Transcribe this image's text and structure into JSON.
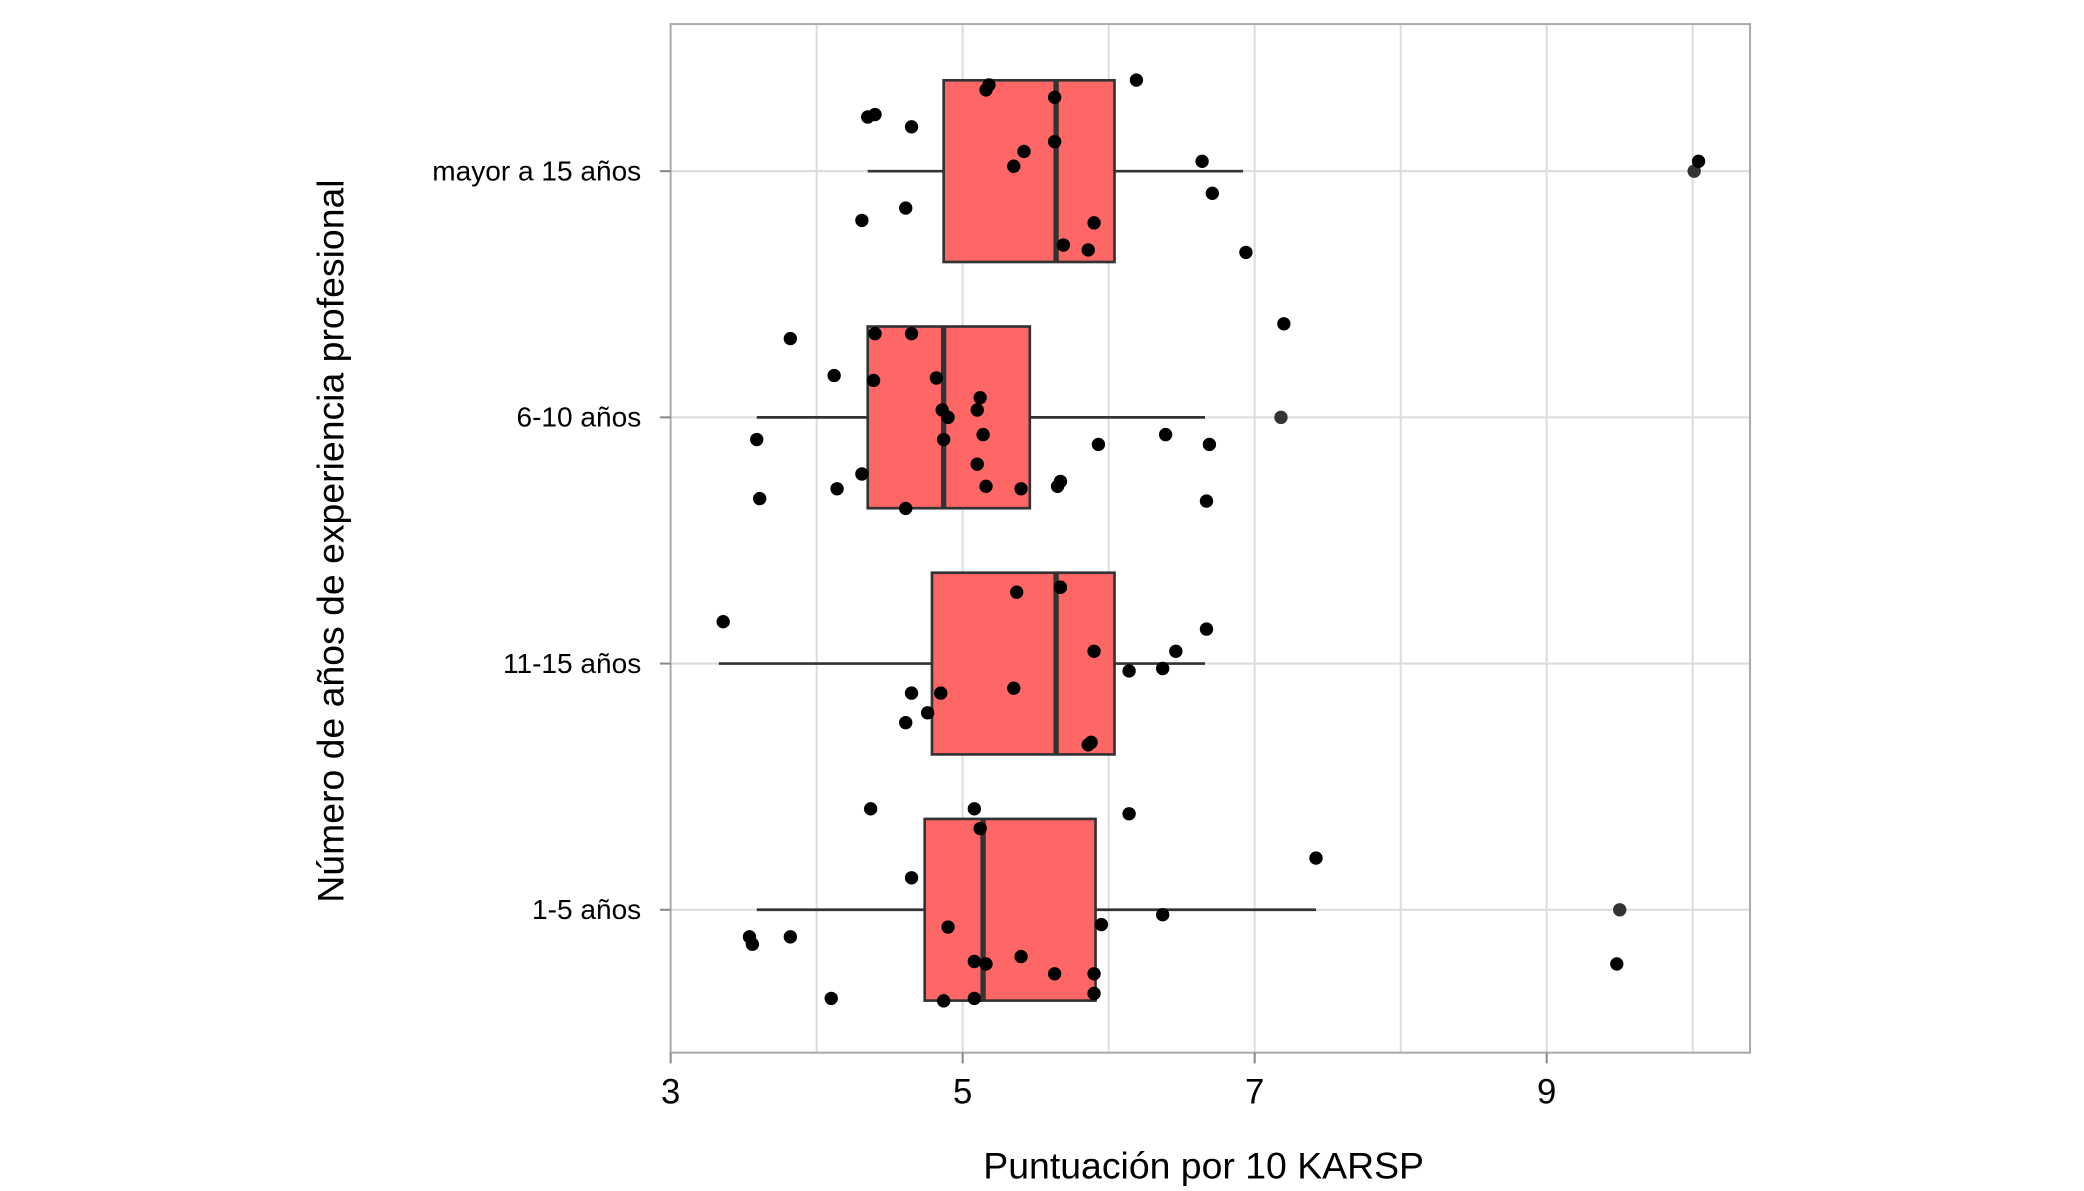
{
  "chart_data": {
    "type": "boxplot",
    "orientation": "horizontal",
    "title": "",
    "xlabel": "Puntuación por 10 KARSP",
    "ylabel": "Número de años de experiencia profesional",
    "xlim": [
      3,
      10.39
    ],
    "xticks": [
      3,
      5,
      7,
      9
    ],
    "xtick_labels": [
      "3",
      "5",
      "7",
      "9"
    ],
    "grid": true,
    "categories": [
      "1-5 años",
      "11-15 años",
      "6-10 años",
      "mayor a 15 años"
    ],
    "colors": {
      "box_fill": "#FF6666",
      "box_stroke": "#333333",
      "point": "#000000",
      "grid": "#DCDCDC",
      "frame": "#AAAAAA"
    },
    "boxes": [
      {
        "category": "1-5 años",
        "whisker_low": 3.59,
        "q1": 4.74,
        "median": 5.14,
        "q3": 5.91,
        "whisker_high": 7.42,
        "outliers": [
          9.5
        ]
      },
      {
        "category": "11-15 años",
        "whisker_low": 3.33,
        "q1": 4.79,
        "median": 5.64,
        "q3": 6.04,
        "whisker_high": 6.66,
        "outliers": []
      },
      {
        "category": "6-10 años",
        "whisker_low": 3.59,
        "q1": 4.35,
        "median": 4.87,
        "q3": 5.46,
        "whisker_high": 6.66,
        "outliers": [
          7.18
        ]
      },
      {
        "category": "mayor a 15 años",
        "whisker_low": 4.35,
        "q1": 4.87,
        "median": 5.64,
        "q3": 6.04,
        "whisker_high": 6.92,
        "outliers": [
          10.01
        ]
      }
    ],
    "jitter_points": [
      [
        6.19,
        4.37
      ],
      [
        5.18,
        4.35
      ],
      [
        5.16,
        4.33
      ],
      [
        5.63,
        4.3
      ],
      [
        4.4,
        4.23
      ],
      [
        4.35,
        4.22
      ],
      [
        4.65,
        4.18
      ],
      [
        5.63,
        4.12
      ],
      [
        5.42,
        4.08
      ],
      [
        5.35,
        4.02
      ],
      [
        6.64,
        4.04
      ],
      [
        10.04,
        4.04
      ],
      [
        6.71,
        3.91
      ],
      [
        4.61,
        3.85
      ],
      [
        4.31,
        3.8
      ],
      [
        5.9,
        3.79
      ],
      [
        5.69,
        3.7
      ],
      [
        5.86,
        3.68
      ],
      [
        6.94,
        3.67
      ],
      [
        7.2,
        3.38
      ],
      [
        3.82,
        3.32
      ],
      [
        4.4,
        3.34
      ],
      [
        4.65,
        3.34
      ],
      [
        4.12,
        3.17
      ],
      [
        4.39,
        3.15
      ],
      [
        4.82,
        3.16
      ],
      [
        5.12,
        3.08
      ],
      [
        5.1,
        3.03
      ],
      [
        4.86,
        3.03
      ],
      [
        4.9,
        3.0
      ],
      [
        3.59,
        2.91
      ],
      [
        4.87,
        2.91
      ],
      [
        5.14,
        2.93
      ],
      [
        6.39,
        2.93
      ],
      [
        6.69,
        2.89
      ],
      [
        5.93,
        2.89
      ],
      [
        4.31,
        2.77
      ],
      [
        5.1,
        2.81
      ],
      [
        5.67,
        2.74
      ],
      [
        5.65,
        2.72
      ],
      [
        5.16,
        2.72
      ],
      [
        5.4,
        2.71
      ],
      [
        4.14,
        2.71
      ],
      [
        3.61,
        2.67
      ],
      [
        6.67,
        2.66
      ],
      [
        4.61,
        2.63
      ],
      [
        5.37,
        2.29
      ],
      [
        5.67,
        2.31
      ],
      [
        3.36,
        2.17
      ],
      [
        6.67,
        2.14
      ],
      [
        6.46,
        2.05
      ],
      [
        5.9,
        2.05
      ],
      [
        6.14,
        1.97
      ],
      [
        6.37,
        1.98
      ],
      [
        5.35,
        1.9
      ],
      [
        4.65,
        1.88
      ],
      [
        4.85,
        1.88
      ],
      [
        4.76,
        1.8
      ],
      [
        4.61,
        1.76
      ],
      [
        5.88,
        1.68
      ],
      [
        5.86,
        1.67
      ],
      [
        4.37,
        1.41
      ],
      [
        5.08,
        1.41
      ],
      [
        6.14,
        1.39
      ],
      [
        5.12,
        1.33
      ],
      [
        7.42,
        1.21
      ],
      [
        4.65,
        1.13
      ],
      [
        6.37,
        0.98
      ],
      [
        5.95,
        0.94
      ],
      [
        4.9,
        0.93
      ],
      [
        3.54,
        0.89
      ],
      [
        3.56,
        0.86
      ],
      [
        3.82,
        0.89
      ],
      [
        5.4,
        0.81
      ],
      [
        5.08,
        0.79
      ],
      [
        5.16,
        0.78
      ],
      [
        9.48,
        0.78
      ],
      [
        5.63,
        0.74
      ],
      [
        5.9,
        0.74
      ],
      [
        5.9,
        0.66
      ],
      [
        4.1,
        0.64
      ],
      [
        4.87,
        0.63
      ],
      [
        5.08,
        0.64
      ]
    ]
  }
}
